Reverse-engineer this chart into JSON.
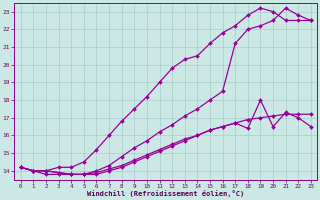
{
  "background_color": "#cce8e4",
  "grid_color": "#aacccc",
  "line_color": "#990099",
  "xlim": [
    -0.5,
    23.5
  ],
  "ylim": [
    13.5,
    23.5
  ],
  "xticks": [
    0,
    1,
    2,
    3,
    4,
    5,
    6,
    7,
    8,
    9,
    10,
    11,
    12,
    13,
    14,
    15,
    16,
    17,
    18,
    19,
    20,
    21,
    22,
    23
  ],
  "yticks": [
    14,
    15,
    16,
    17,
    18,
    19,
    20,
    21,
    22,
    23
  ],
  "line1_x": [
    0,
    1,
    2,
    3,
    4,
    5,
    6,
    7,
    8,
    9,
    10,
    11,
    12,
    13,
    14,
    15,
    16,
    17,
    18,
    19,
    20,
    21,
    22,
    23
  ],
  "line1_y": [
    14.2,
    14.0,
    14.0,
    14.2,
    14.2,
    14.5,
    15.2,
    16.0,
    16.8,
    17.5,
    18.2,
    19.0,
    19.8,
    20.3,
    20.5,
    21.2,
    21.8,
    22.2,
    22.8,
    23.2,
    23.0,
    22.5,
    22.5,
    22.5
  ],
  "line2_x": [
    0,
    1,
    2,
    3,
    4,
    5,
    6,
    7,
    8,
    9,
    10,
    11,
    12,
    13,
    14,
    15,
    16,
    17,
    18,
    19,
    20,
    21,
    22,
    23
  ],
  "line2_y": [
    14.2,
    14.0,
    13.8,
    13.8,
    13.8,
    13.8,
    14.0,
    14.3,
    14.8,
    15.3,
    15.7,
    16.2,
    16.6,
    17.1,
    17.5,
    18.0,
    18.5,
    21.2,
    22.0,
    22.2,
    22.5,
    23.2,
    22.8,
    22.5
  ],
  "line3_x": [
    0,
    1,
    2,
    3,
    4,
    5,
    6,
    7,
    8,
    9,
    10,
    11,
    12,
    13,
    14,
    15,
    16,
    17,
    18,
    19,
    20,
    21,
    22,
    23
  ],
  "line3_y": [
    14.2,
    14.0,
    14.0,
    13.9,
    13.8,
    13.8,
    13.8,
    14.0,
    14.2,
    14.5,
    14.8,
    15.1,
    15.4,
    15.7,
    16.0,
    16.3,
    16.5,
    16.7,
    16.9,
    17.0,
    17.1,
    17.2,
    17.2,
    17.2
  ],
  "line4_x": [
    0,
    1,
    2,
    3,
    4,
    5,
    6,
    7,
    8,
    9,
    10,
    11,
    12,
    13,
    14,
    15,
    16,
    17,
    18,
    19,
    20,
    21,
    22,
    23
  ],
  "line4_y": [
    14.2,
    14.0,
    14.0,
    13.9,
    13.8,
    13.8,
    13.9,
    14.1,
    14.3,
    14.6,
    14.9,
    15.2,
    15.5,
    15.8,
    16.0,
    16.3,
    16.5,
    16.7,
    16.4,
    18.0,
    16.5,
    17.3,
    17.0,
    16.5
  ],
  "xlabel": "Windchill (Refroidissement éolien,°C)"
}
